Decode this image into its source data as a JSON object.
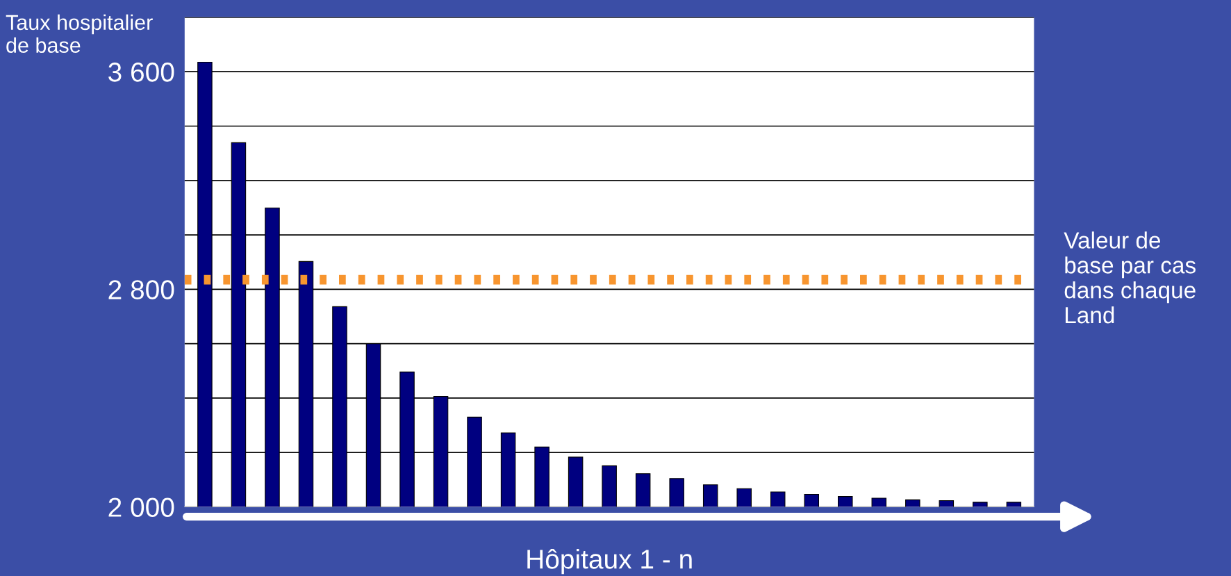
{
  "chart_data": {
    "type": "bar",
    "xlabel": "Hôpitaux 1 - n",
    "ylabel": "Taux hospitalier\nde base",
    "categories": [
      null,
      null,
      null,
      null,
      null,
      null,
      null,
      null,
      null,
      null,
      null,
      null,
      null,
      null,
      null,
      null,
      null,
      null,
      null,
      null,
      null,
      null,
      null,
      null,
      null
    ],
    "values": [
      3635,
      3339,
      3099,
      2902,
      2736,
      2600,
      2496,
      2406,
      2330,
      2272,
      2220,
      2183,
      2151,
      2122,
      2104,
      2081,
      2067,
      2055,
      2046,
      2038,
      2032,
      2026,
      2023,
      2017,
      2017
    ],
    "color": "#000080",
    "ylim": [
      2000,
      3800
    ],
    "yticks": [
      {
        "value": 2000,
        "label": "2 000"
      },
      {
        "value": 2200,
        "label": null
      },
      {
        "value": 2400,
        "label": null
      },
      {
        "value": 2600,
        "label": null
      },
      {
        "value": 2800,
        "label": "2 800"
      },
      {
        "value": 3000,
        "label": null
      },
      {
        "value": 3200,
        "label": null
      },
      {
        "value": 3400,
        "label": null
      },
      {
        "value": 3600,
        "label": "3 600"
      },
      {
        "value": 3800,
        "label": null
      }
    ],
    "grid": "y",
    "ref_lines": [
      {
        "axis": "y",
        "value": 2835,
        "label": "Valeur de\nbase par cas\ndans chaque\nLand",
        "color": "#f7952f",
        "line_style": "dotted"
      }
    ]
  }
}
